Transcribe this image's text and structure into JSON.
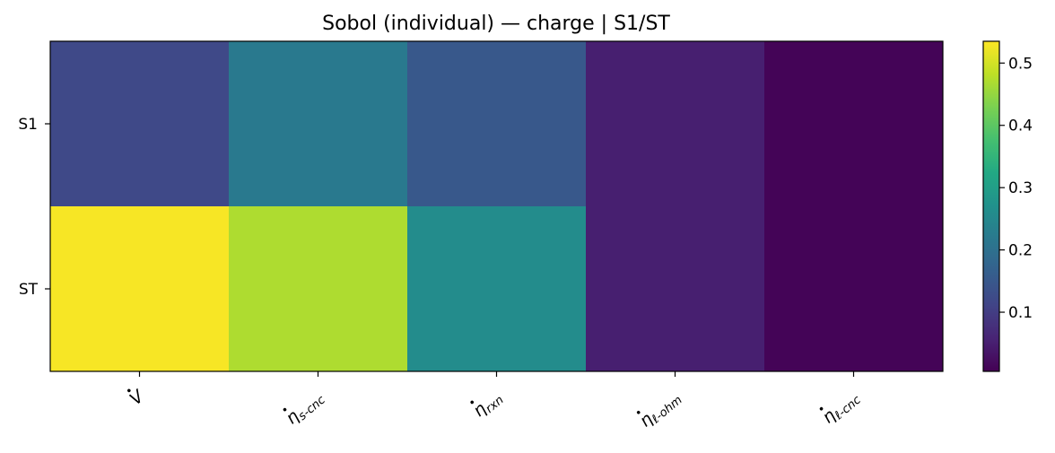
{
  "chart_data": {
    "type": "heatmap",
    "title": "Sobol (individual) — charge | S1/ST",
    "x_categories": [
      {
        "base": "V",
        "sub": ""
      },
      {
        "base": "η",
        "sub": "s-cnc"
      },
      {
        "base": "η",
        "sub": "rxn"
      },
      {
        "base": "η",
        "sub": "ℓ-ohm"
      },
      {
        "base": "η",
        "sub": "ℓ-cnc"
      }
    ],
    "y_categories": [
      "S1",
      "ST"
    ],
    "values": [
      [
        0.12,
        0.22,
        0.15,
        0.05,
        0.01
      ],
      [
        0.53,
        0.47,
        0.26,
        0.05,
        0.01
      ]
    ],
    "colorbar": {
      "min": 0.005,
      "max": 0.535,
      "ticks": [
        0.1,
        0.2,
        0.3,
        0.4,
        0.5
      ],
      "tick_labels": [
        "0.1",
        "0.2",
        "0.3",
        "0.4",
        "0.5"
      ],
      "colormap": "viridis"
    },
    "xlabel": "",
    "ylabel": "",
    "grid": false
  }
}
